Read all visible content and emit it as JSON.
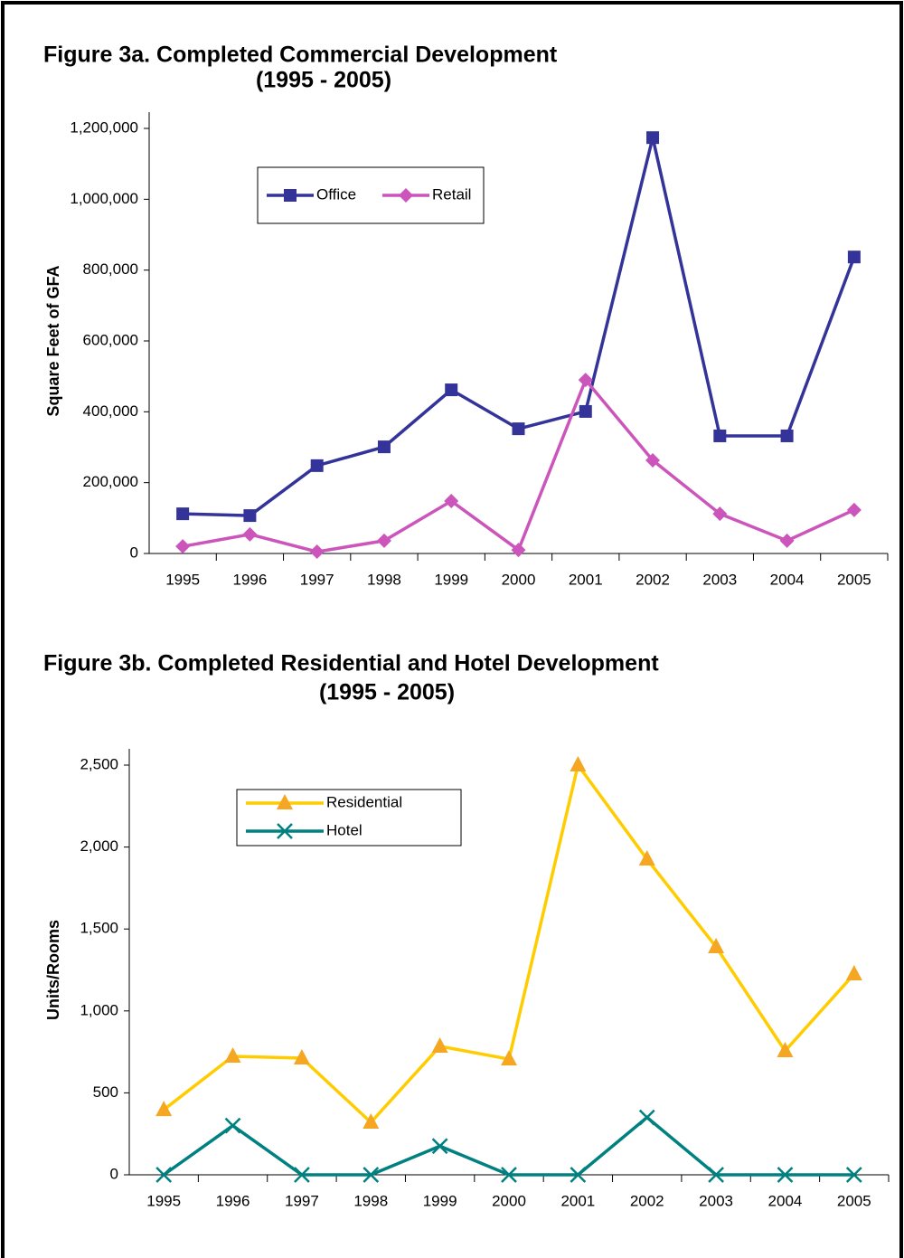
{
  "chart_data": [
    {
      "type": "line",
      "title": "Figure 3a. Completed Commercial Development",
      "subtitle": "(1995 - 2005)",
      "y_label": "Square Feet of GFA",
      "categories": [
        "1995",
        "1996",
        "1997",
        "1998",
        "1999",
        "2000",
        "2001",
        "2002",
        "2003",
        "2004",
        "2005"
      ],
      "series": [
        {
          "name": "Office",
          "color": "#333399",
          "marker_color": "#333399",
          "marker": "square",
          "values": [
            112000,
            107000,
            248000,
            301000,
            462000,
            352000,
            401000,
            1174000,
            332000,
            332000,
            837000
          ]
        },
        {
          "name": "Retail",
          "color": "#cc55bb",
          "marker_color": "#cc55bb",
          "marker": "diamond",
          "values": [
            20000,
            54000,
            5000,
            36000,
            148000,
            10000,
            490000,
            263000,
            112000,
            36000,
            123000
          ]
        }
      ],
      "ylim": [
        0,
        1200000
      ],
      "yticks": [
        0,
        {
          "value": 200000,
          "label": "200,000"
        },
        {
          "value": 400000,
          "label": "400,000"
        },
        {
          "value": 600000,
          "label": "600,000"
        },
        {
          "value": 800000,
          "label": "800,000"
        },
        {
          "value": 1000000,
          "label": "1,000,000"
        },
        {
          "value": 1200000,
          "label": "1,200,000"
        }
      ],
      "legend": "top-left",
      "grid": false
    },
    {
      "type": "line",
      "title": "Figure 3b. Completed Residential and Hotel Development",
      "subtitle": "(1995 - 2005)",
      "y_label": "Units/Rooms",
      "categories": [
        "1995",
        "1996",
        "1997",
        "1998",
        "1999",
        "2000",
        "2001",
        "2002",
        "2003",
        "2004",
        "2005"
      ],
      "series": [
        {
          "name": "Residential",
          "color": "#ffcc00",
          "marker_color": "#f5a623",
          "marker": "triangle",
          "values": [
            397,
            723,
            712,
            320,
            784,
            706,
            2500,
            1926,
            1391,
            756,
            1225
          ]
        },
        {
          "name": "Hotel",
          "color": "#008080",
          "marker_color": "#008080",
          "marker": "x",
          "values": [
            0,
            300,
            0,
            0,
            175,
            0,
            0,
            350,
            0,
            0,
            0
          ]
        }
      ],
      "ylim": [
        0,
        2500
      ],
      "yticks": [
        0,
        500,
        {
          "value": 1000,
          "label": "1,000"
        },
        {
          "value": 1500,
          "label": "1,500"
        },
        {
          "value": 2000,
          "label": "2,000"
        },
        {
          "value": 2500,
          "label": "2,500"
        }
      ],
      "legend": "top-left",
      "grid": false
    }
  ]
}
